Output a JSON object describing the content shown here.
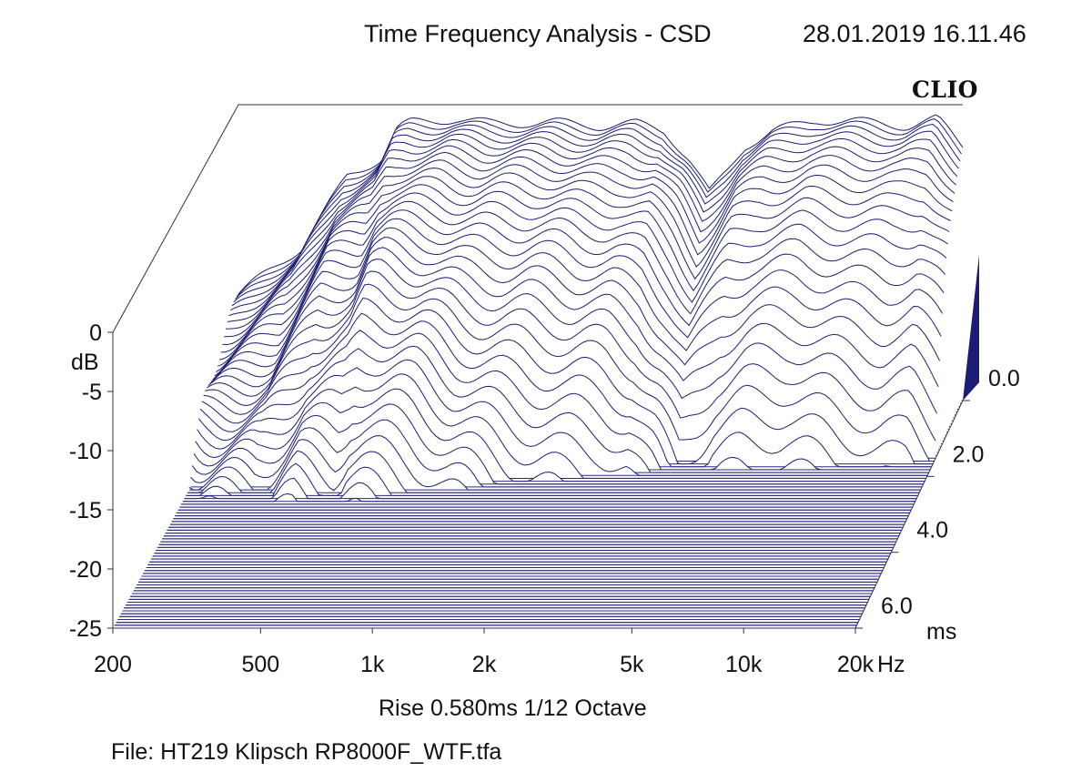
{
  "header": {
    "title": "Time Frequency Analysis - CSD",
    "timestamp": "28.01.2019 16.11.46",
    "logo_text": "CLIO"
  },
  "footer": {
    "settings": "Rise 0.580ms   1/12 Octave",
    "file": "File: HT219 Klipsch RP8000F_WTF.tfa"
  },
  "colors": {
    "trace": "#1c1c74",
    "floor_hatch": "#2a2a80",
    "axis": "#333333",
    "background": "#ffffff"
  },
  "chart_data": {
    "type": "waterfall",
    "ylabel": "dB",
    "xunit": "Hz",
    "zunit": "ms",
    "x_ticks": [
      "200",
      "500",
      "1k",
      "2k",
      "5k",
      "10k",
      "20k"
    ],
    "y_ticks": [
      "0",
      "-5",
      "-10",
      "-15",
      "-20",
      "-25"
    ],
    "z_ticks": [
      "0.0",
      "2.0",
      "4.0",
      "6.0"
    ],
    "x_range_hz": [
      200,
      20000
    ],
    "x_scale": "log",
    "y_range_db": [
      -25,
      0
    ],
    "z_range_ms": [
      0,
      6
    ],
    "num_slices": 80,
    "initial_response_db": [
      [
        200,
        -16
      ],
      [
        300,
        -12
      ],
      [
        400,
        -6
      ],
      [
        500,
        -4.5
      ],
      [
        550,
        -2
      ],
      [
        600,
        -1.5
      ],
      [
        800,
        -1.2
      ],
      [
        1000,
        -1.6
      ],
      [
        1500,
        -1.5
      ],
      [
        2000,
        -1.8
      ],
      [
        2500,
        -1.6
      ],
      [
        3000,
        -2.2
      ],
      [
        3500,
        -4.5
      ],
      [
        4000,
        -7.5
      ],
      [
        4500,
        -5.5
      ],
      [
        5000,
        -3.5
      ],
      [
        6000,
        -2.2
      ],
      [
        8000,
        -1.3
      ],
      [
        10000,
        -1.4
      ],
      [
        14000,
        -1.8
      ],
      [
        17000,
        -1.2
      ],
      [
        20000,
        -3.5
      ]
    ]
  }
}
